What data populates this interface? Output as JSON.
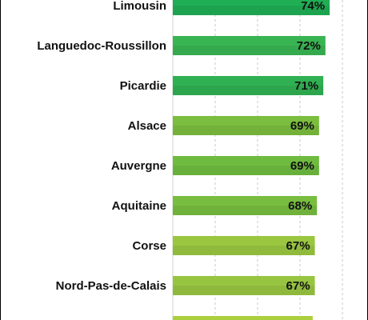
{
  "chart_data": {
    "type": "bar",
    "orientation": "horizontal",
    "categories": [
      "Limousin",
      "Languedoc-Roussillon",
      "Picardie",
      "Alsace",
      "Auvergne",
      "Aquitaine",
      "Corse",
      "Nord-Pas-de-Calais",
      ""
    ],
    "values": [
      74,
      72,
      71,
      69,
      69,
      68,
      67,
      67,
      66
    ],
    "value_labels": [
      "74%",
      "72%",
      "71%",
      "69%",
      "69%",
      "68%",
      "67%",
      "67%",
      ""
    ],
    "unit": "%",
    "xlim": [
      0,
      85
    ],
    "grid": "vertical dashed",
    "colors": [
      "#1fae54",
      "#39b453",
      "#30b052",
      "#7bbd3e",
      "#6fbb40",
      "#78bd3f",
      "#9ac640",
      "#98c541",
      "#acd03d"
    ]
  }
}
